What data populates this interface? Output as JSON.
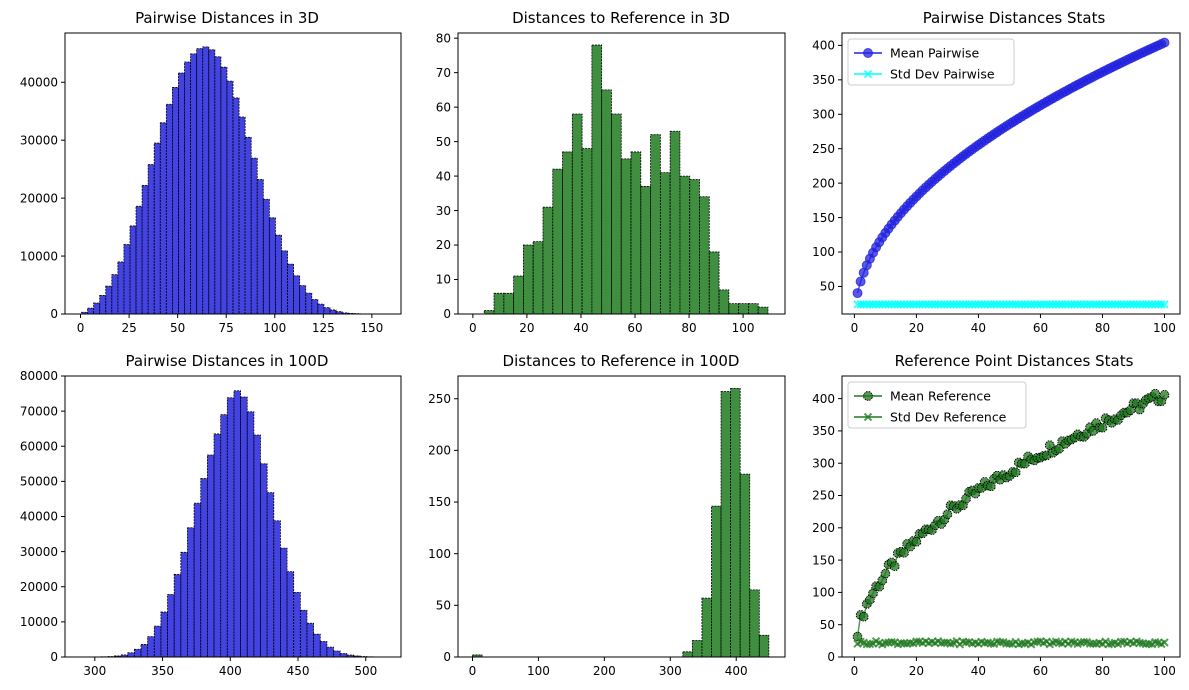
{
  "chart_data": [
    {
      "type": "bar",
      "title": "Pairwise Distances in 3D",
      "xlim": [
        -8,
        165
      ],
      "ylim": [
        0,
        48500
      ],
      "xticks": [
        0,
        25,
        50,
        75,
        100,
        125,
        150
      ],
      "yticks": [
        0,
        10000,
        20000,
        30000,
        40000
      ],
      "bin_edges_start": 0.5,
      "bin_width": 3.12,
      "values": [
        300,
        1000,
        1900,
        3200,
        4800,
        6800,
        9000,
        12000,
        15200,
        18600,
        22200,
        25800,
        29500,
        33000,
        36200,
        39100,
        41600,
        43500,
        44900,
        45800,
        46100,
        45600,
        44400,
        42600,
        40200,
        37300,
        34000,
        30500,
        26900,
        23200,
        19800,
        16600,
        13600,
        10900,
        8600,
        6600,
        4900,
        3600,
        2500,
        1700,
        1100,
        700,
        400,
        200,
        100,
        50,
        20,
        10,
        5,
        2
      ],
      "color": "#2222dd",
      "alpha": 0.85
    },
    {
      "type": "bar",
      "title": "Distances to Reference in 3D",
      "xlim": [
        -5.5,
        115.5
      ],
      "ylim": [
        0,
        81.5
      ],
      "xticks": [
        0,
        20,
        40,
        60,
        80,
        100
      ],
      "yticks": [
        0,
        10,
        20,
        30,
        40,
        50,
        60,
        70,
        80
      ],
      "bin_edges_start": 0.6,
      "bin_width": 3.62,
      "values": [
        0,
        1,
        6,
        6,
        11,
        20,
        21,
        31,
        42,
        47,
        58,
        48,
        78,
        65,
        58,
        45,
        47,
        37,
        52,
        41,
        53,
        40,
        39,
        34,
        18,
        7,
        3,
        3,
        3,
        2
      ],
      "color": "#1f7a1f",
      "alpha": 0.85
    },
    {
      "type": "line",
      "title": "Pairwise Distances Stats",
      "xlim": [
        -4,
        105
      ],
      "ylim": [
        10,
        418
      ],
      "xticks": [
        0,
        20,
        40,
        60,
        80,
        100
      ],
      "yticks": [
        50,
        100,
        150,
        200,
        250,
        300,
        350,
        400
      ],
      "x_range": [
        1,
        100
      ],
      "series": [
        {
          "name": "Mean Pairwise",
          "color": "#2222dd",
          "marker": "circle",
          "model": "mean",
          "scale": 40.4,
          "noise": 0
        },
        {
          "name": "Std Dev Pairwise",
          "color": "#00ffff",
          "marker": "x",
          "model": "const",
          "value": 24,
          "noise": 0
        }
      ],
      "legend": "top-left"
    },
    {
      "type": "bar",
      "title": "Pairwise Distances in 100D",
      "xlim": [
        278,
        526
      ],
      "ylim": [
        0,
        80000
      ],
      "xticks": [
        300,
        350,
        400,
        450,
        500
      ],
      "yticks": [
        0,
        10000,
        20000,
        30000,
        40000,
        50000,
        60000,
        70000,
        80000
      ],
      "bin_edges_start": 290,
      "bin_width": 4.9,
      "values": [
        10,
        20,
        40,
        80,
        150,
        300,
        600,
        1200,
        2200,
        3600,
        5800,
        8800,
        12800,
        17800,
        23500,
        29800,
        36800,
        43800,
        50800,
        57500,
        63500,
        69000,
        73800,
        75800,
        74000,
        69800,
        63200,
        55000,
        46800,
        38800,
        31000,
        24300,
        18400,
        13300,
        9600,
        6500,
        4400,
        2800,
        1700,
        1000,
        550,
        300,
        150,
        70,
        30,
        15
      ],
      "color": "#2222dd",
      "alpha": 0.85
    },
    {
      "type": "bar",
      "title": "Distances to Reference in 100D",
      "xlim": [
        -22,
        474
      ],
      "ylim": [
        0,
        272
      ],
      "xticks": [
        0,
        100,
        200,
        300,
        400
      ],
      "yticks": [
        0,
        50,
        100,
        150,
        200,
        250
      ],
      "bin_edges_start": 0,
      "bin_width": 14.5,
      "values": [
        2,
        0,
        0,
        0,
        0,
        0,
        0,
        0,
        0,
        0,
        0,
        0,
        0,
        0,
        0,
        0,
        0,
        0,
        0,
        0,
        0,
        0,
        5,
        16,
        57,
        146,
        257,
        260,
        177,
        65,
        21
      ],
      "color": "#1f7a1f",
      "alpha": 0.85
    },
    {
      "type": "line",
      "title": "Reference Point Distances Stats",
      "xlim": [
        -4,
        105
      ],
      "ylim": [
        0,
        435
      ],
      "xticks": [
        0,
        20,
        40,
        60,
        80,
        100
      ],
      "yticks": [
        0,
        50,
        100,
        150,
        200,
        250,
        300,
        350,
        400
      ],
      "x_range": [
        1,
        100
      ],
      "series": [
        {
          "name": "Mean Reference",
          "color": "#1f7a1f",
          "marker": "octagon",
          "model": "mean",
          "scale": 40.6,
          "noise": 9
        },
        {
          "name": "Std Dev Reference",
          "color": "#1f7a1f",
          "marker": "x",
          "model": "const",
          "value": 22,
          "noise": 2.5
        }
      ],
      "legend": "top-left"
    }
  ]
}
